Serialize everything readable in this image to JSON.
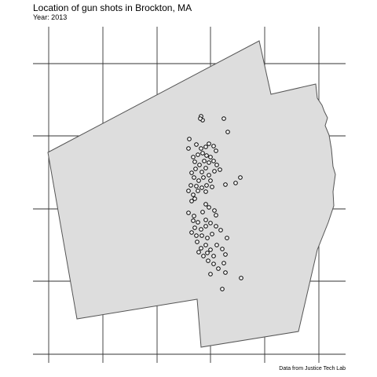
{
  "title": "Location of gun shots in Brockton, MA",
  "subtitle": "Year: 2013",
  "caption": "Data from Justice Tech Lab",
  "colors": {
    "background": "#ffffff",
    "grid": "#333333",
    "city_fill": "#dddddd",
    "city_stroke": "#555555",
    "point_fill": "#ffffff",
    "point_stroke": "#000000"
  }
}
